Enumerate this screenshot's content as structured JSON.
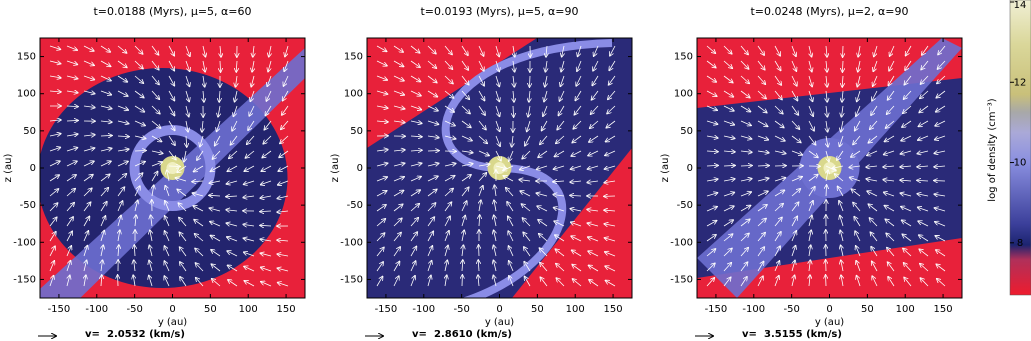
{
  "chart_data": [
    {
      "type": "density-map",
      "title": "t=0.0188 (Myrs), μ=5, α=60",
      "x_label": "y (au)",
      "y_label": "z (au)",
      "xlim": [
        -175,
        175
      ],
      "ylim": [
        -175,
        175
      ],
      "xticks": [
        -150,
        -100,
        -50,
        0,
        50,
        100,
        150
      ],
      "yticks": [
        -150,
        -100,
        -50,
        0,
        50,
        100,
        150
      ],
      "velocity_label": "v=",
      "velocity_scale": "2.0532 (km/s)"
    },
    {
      "type": "density-map",
      "title": "t=0.0193 (Myrs), μ=5, α=90",
      "x_label": "y (au)",
      "y_label": "z (au)",
      "xlim": [
        -175,
        175
      ],
      "ylim": [
        -175,
        175
      ],
      "xticks": [
        -150,
        -100,
        -50,
        0,
        50,
        100,
        150
      ],
      "yticks": [
        -150,
        -100,
        -50,
        0,
        50,
        100,
        150
      ],
      "velocity_label": "v=",
      "velocity_scale": "2.8610 (km/s)"
    },
    {
      "type": "density-map",
      "title": "t=0.0248 (Myrs), μ=2, α=90",
      "x_label": "y (au)",
      "y_label": "z (au)",
      "xlim": [
        -175,
        175
      ],
      "ylim": [
        -175,
        175
      ],
      "xticks": [
        -150,
        -100,
        -50,
        0,
        50,
        100,
        150
      ],
      "yticks": [
        -150,
        -100,
        -50,
        0,
        50,
        100,
        150
      ],
      "velocity_label": "v=",
      "velocity_scale": "3.5155 (km/s)"
    },
    {
      "type": "colorbar",
      "label": "log of density (cm⁻³)",
      "ylim": [
        6.7,
        14.05
      ],
      "yticks": [
        8,
        10,
        12,
        14
      ]
    }
  ]
}
